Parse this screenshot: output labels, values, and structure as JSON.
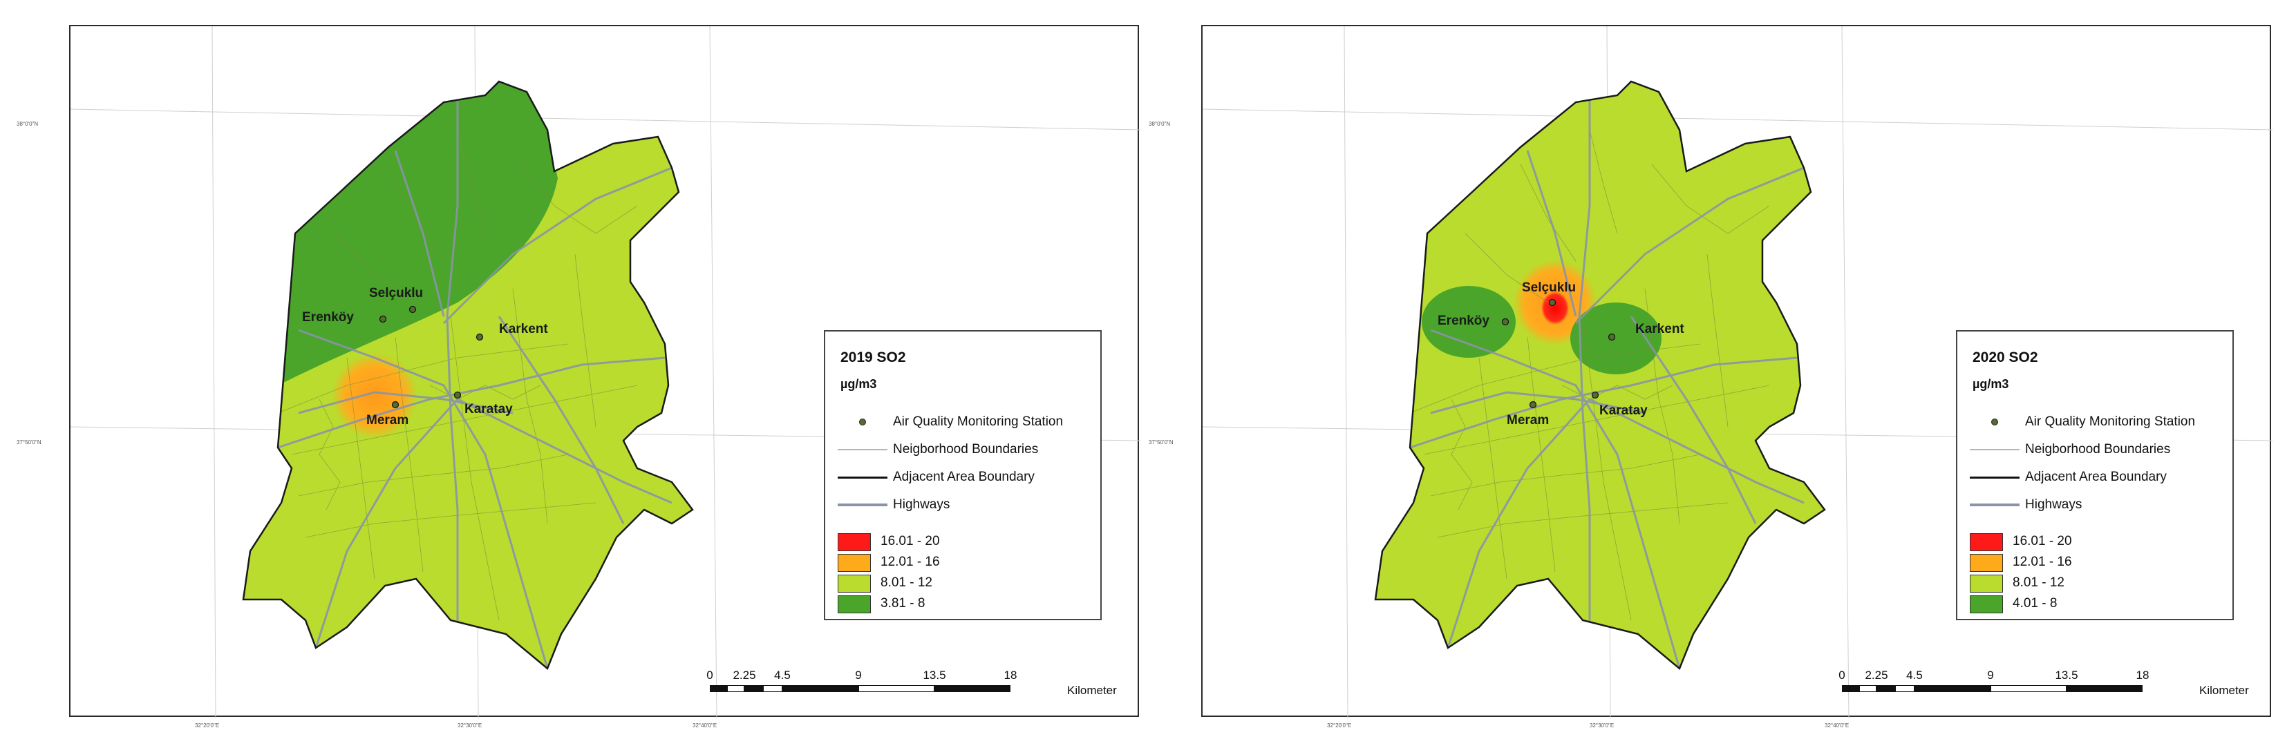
{
  "maps": [
    {
      "legend_title": "2019 SO2",
      "unit": "µg/m3",
      "layers": [
        "Air Quality Monitoring Station",
        "Neigborhood Boundaries",
        "Adjacent Area Boundary",
        "Highways"
      ],
      "classes": [
        {
          "label": "16.01 - 20",
          "color": "#ff1a1a"
        },
        {
          "label": "12.01 - 16",
          "color": "#ffaa1a"
        },
        {
          "label": "8.01 - 12",
          "color": "#b9dc2e"
        },
        {
          "label": "3.81 - 8",
          "color": "#4aa52a"
        }
      ],
      "places": [
        "Selçuklu",
        "Erenköy",
        "Karkent",
        "Meram",
        "Karatay"
      ],
      "scale_ticks": [
        "0",
        "2.25",
        "4.5",
        "9",
        "13.5",
        "18"
      ],
      "scale_unit": "Kilometer",
      "lat_labels": [
        "38°0'0\"N",
        "37°50'0\"N"
      ],
      "lon_labels": [
        "32°20'0\"E",
        "32°30'0\"E",
        "32°40'0\"E"
      ]
    },
    {
      "legend_title": "2020 SO2",
      "unit": "µg/m3",
      "layers": [
        "Air Quality Monitoring Station",
        "Neigborhood Boundaries",
        "Adjacent Area Boundary",
        "Highways"
      ],
      "classes": [
        {
          "label": "16.01 - 20",
          "color": "#ff1a1a"
        },
        {
          "label": "12.01 - 16",
          "color": "#ffaa1a"
        },
        {
          "label": "8.01 - 12",
          "color": "#b9dc2e"
        },
        {
          "label": "4.01 - 8",
          "color": "#4aa52a"
        }
      ],
      "places": [
        "Selçuklu",
        "Erenköy",
        "Karkent",
        "Meram",
        "Karatay"
      ],
      "scale_ticks": [
        "0",
        "2.25",
        "4.5",
        "9",
        "13.5",
        "18"
      ],
      "scale_unit": "Kilometer",
      "lat_labels": [
        "38°0'0\"N",
        "37°50'0\"N"
      ],
      "lon_labels": [
        "32°20'0\"E",
        "32°30'0\"E",
        "32°40'0\"E"
      ]
    }
  ]
}
